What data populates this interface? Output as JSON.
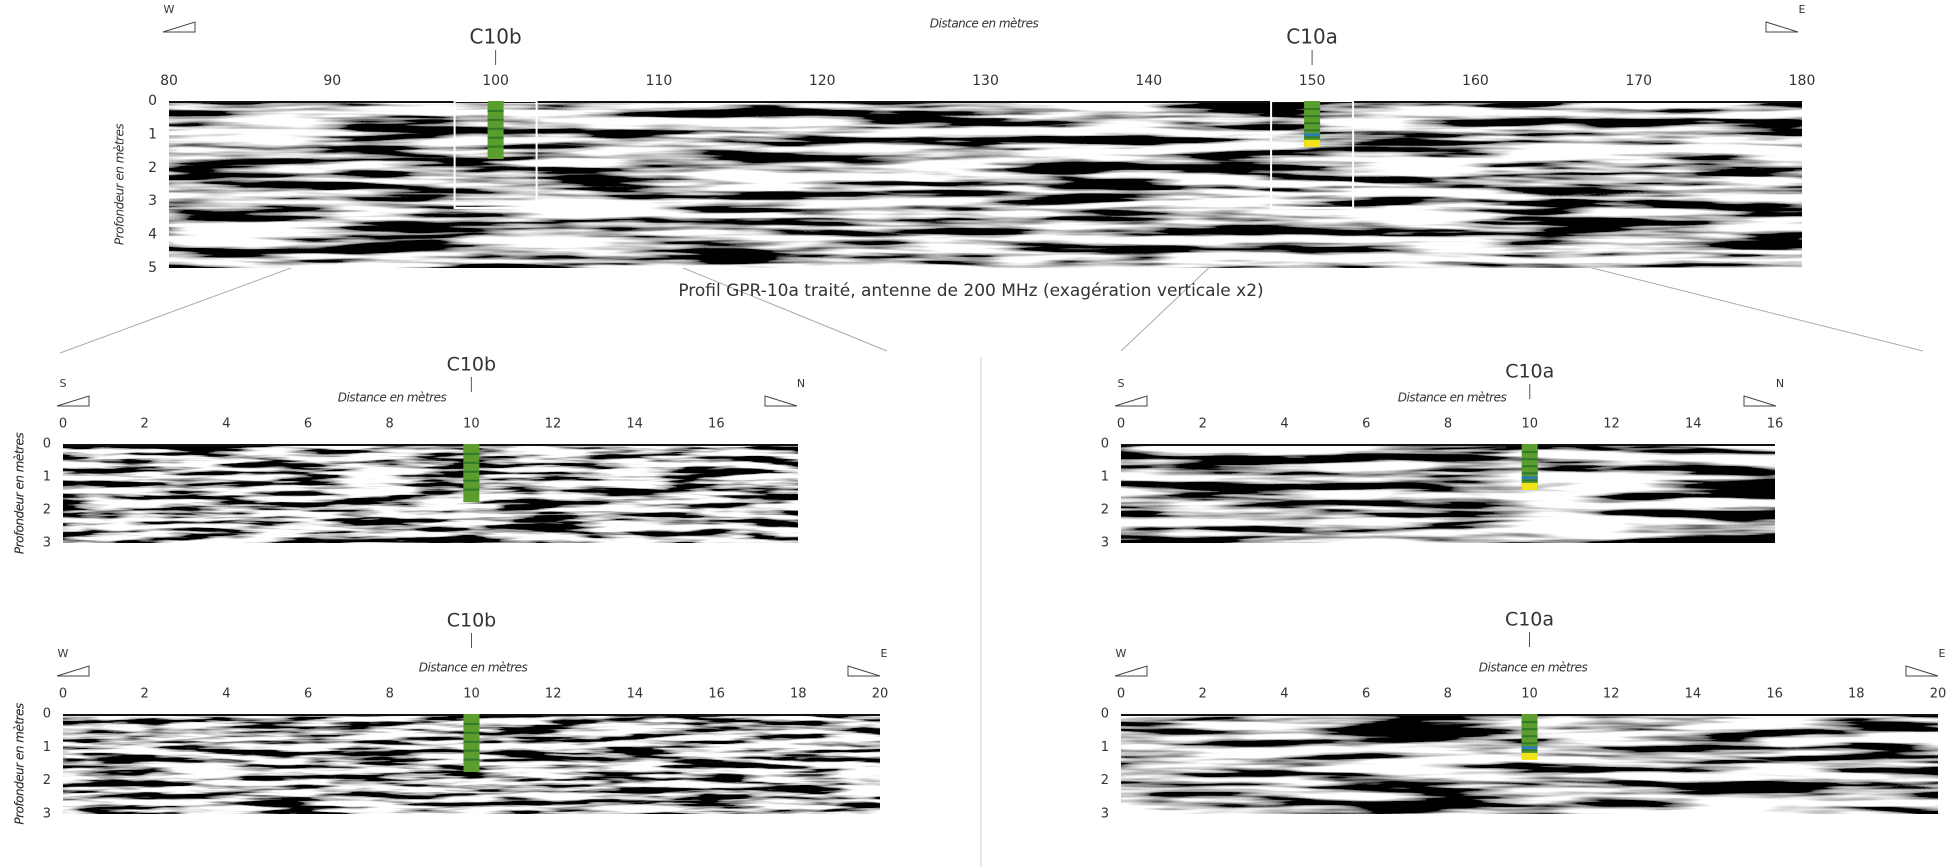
{
  "main": {
    "caption": "Profil GPR-10a traité, antenne de 200 MHz (exagération verticale x2)",
    "x_label": "Distance en mètres",
    "y_label": "Profondeur en mètres",
    "left_dir": "W",
    "right_dir": "E",
    "xlim": [
      80,
      180
    ],
    "xticks": [
      80,
      90,
      100,
      110,
      120,
      130,
      140,
      150,
      160,
      170,
      180
    ],
    "ylim": [
      0,
      5
    ],
    "yticks": [
      0,
      1,
      2,
      3,
      4,
      5
    ],
    "cores": [
      {
        "label": "C10b",
        "x": 100
      },
      {
        "label": "C10a",
        "x": 150
      }
    ]
  },
  "panels": [
    {
      "x_label": "Distance en mètres",
      "y_label": "Profondeur en mètres",
      "left_dir": "S",
      "right_dir": "N",
      "xlim": [
        0,
        18
      ],
      "xticks": [
        0,
        2,
        4,
        6,
        8,
        10,
        12,
        14,
        16
      ],
      "ylim": [
        0,
        3
      ],
      "yticks": [
        0,
        1,
        2,
        3
      ],
      "core": {
        "label": "C10b",
        "x": 10
      }
    },
    {
      "x_label": "Distance en mètres",
      "y_label": "Profondeur en mètres",
      "left_dir": "S",
      "right_dir": "N",
      "xlim": [
        0,
        16
      ],
      "xticks": [
        0,
        2,
        4,
        6,
        8,
        10,
        12,
        14,
        16
      ],
      "ylim": [
        0,
        3
      ],
      "yticks": [
        0,
        1,
        2,
        3
      ],
      "core": {
        "label": "C10a",
        "x": 10
      }
    },
    {
      "x_label": "Distance en mètres",
      "y_label": "Profondeur en mètres",
      "left_dir": "W",
      "right_dir": "E",
      "xlim": [
        0,
        20
      ],
      "xticks": [
        0,
        2,
        4,
        6,
        8,
        10,
        12,
        14,
        16,
        18,
        20
      ],
      "ylim": [
        0,
        3
      ],
      "yticks": [
        0,
        1,
        2,
        3
      ],
      "core": {
        "label": "C10b",
        "x": 10
      }
    },
    {
      "x_label": "Distance en mètres",
      "y_label": "Profondeur en mètres",
      "left_dir": "W",
      "right_dir": "E",
      "xlim": [
        0,
        20
      ],
      "xticks": [
        0,
        2,
        4,
        6,
        8,
        10,
        12,
        14,
        16,
        18,
        20
      ],
      "ylim": [
        0,
        3
      ],
      "yticks": [
        0,
        1,
        2,
        3
      ],
      "core": {
        "label": "C10a",
        "x": 10
      }
    }
  ]
}
